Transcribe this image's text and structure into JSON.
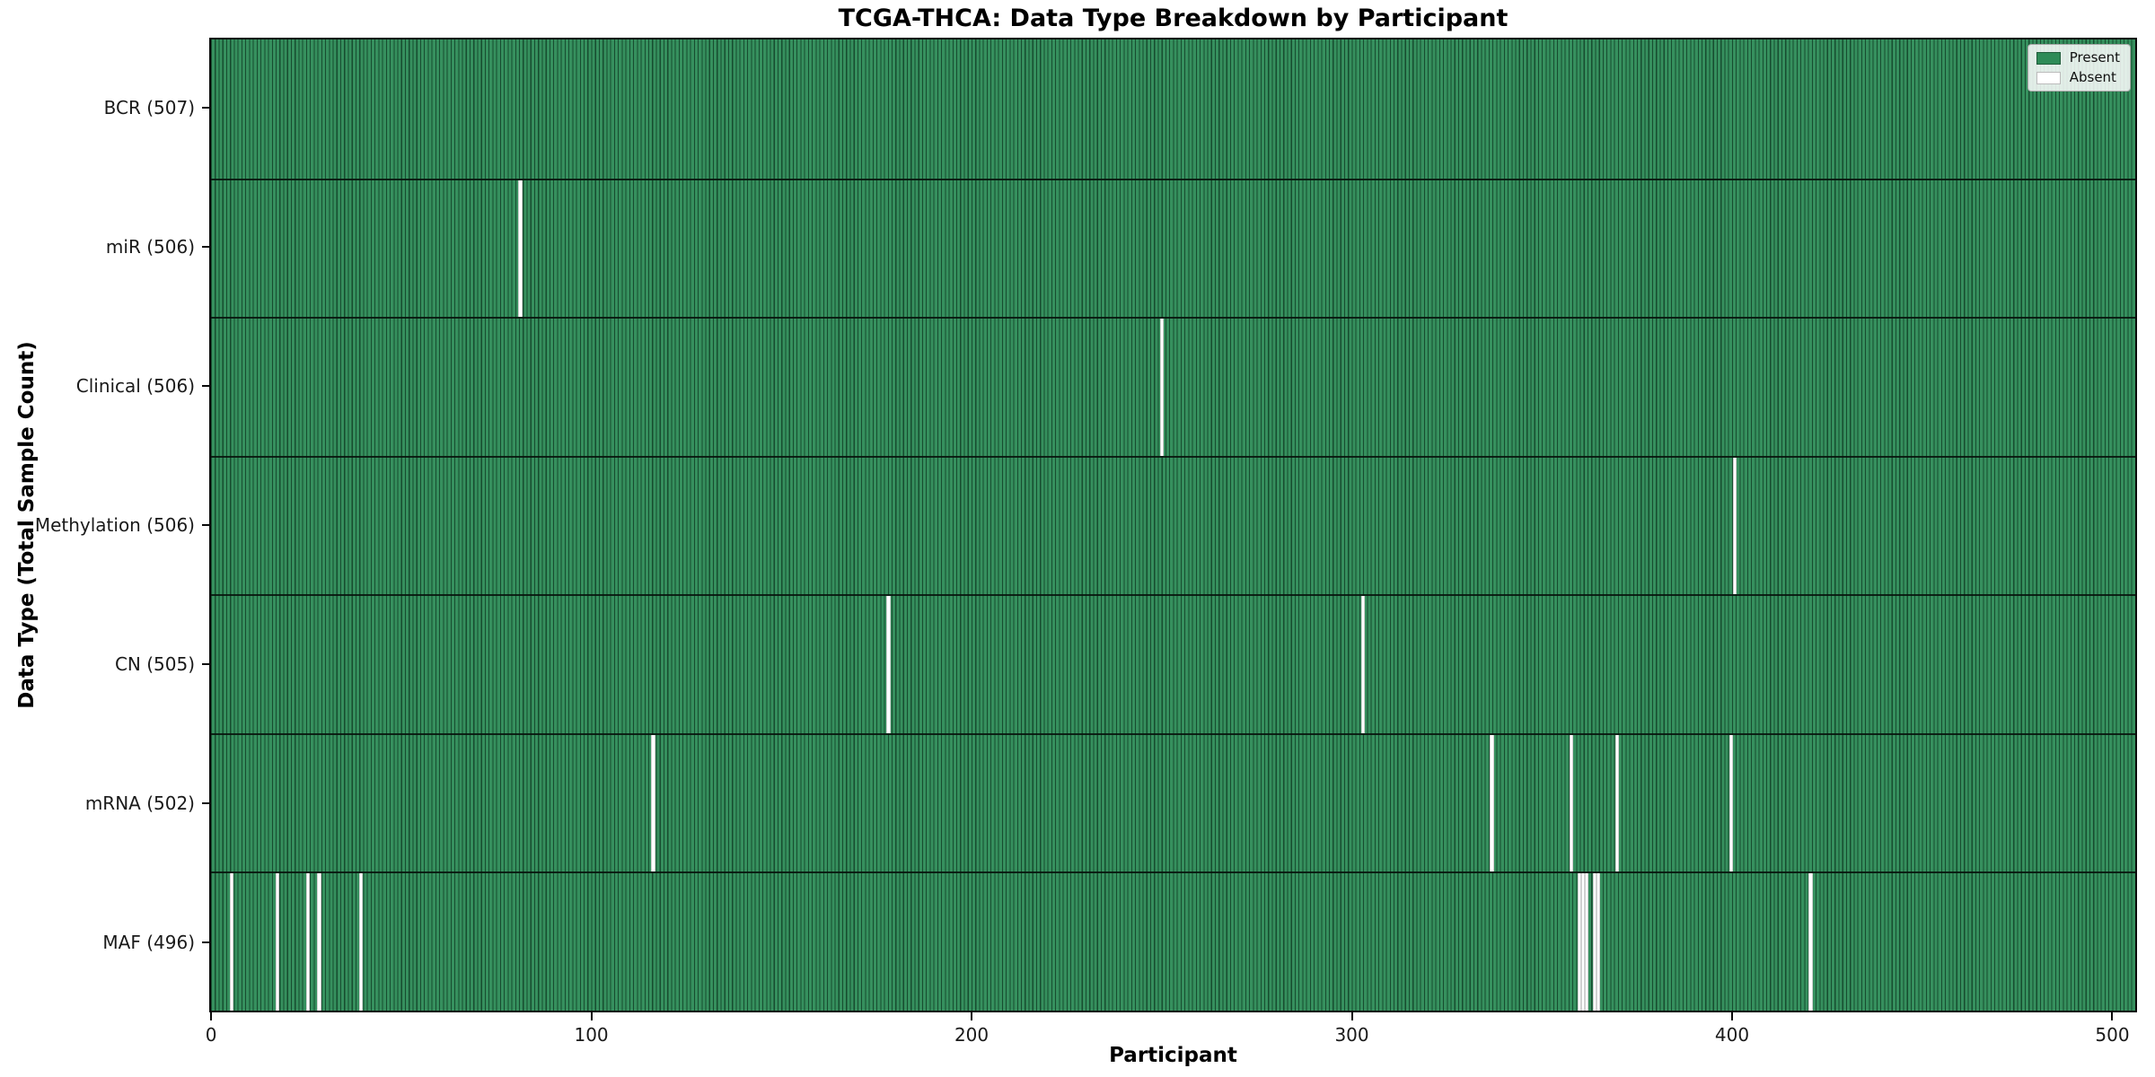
{
  "figure": {
    "title": "TCGA-THCA: Data Type Breakdown by Participant",
    "xlabel": "Participant",
    "ylabel": "Data Type (Total Sample Count)",
    "legend": {
      "present_label": "Present",
      "absent_label": "Absent"
    },
    "colors": {
      "present": "#2e8b57",
      "absent": "#ffffff",
      "bar_edge": "rgba(0,14,8,0.5)",
      "plot_border": "#0a0a0a",
      "legend_border": "#a8a8a8"
    }
  },
  "chart_data": {
    "type": "heatmap",
    "title": "TCGA-THCA: Data Type Breakdown by Participant",
    "xlabel": "Participant",
    "ylabel": "Data Type (Total Sample Count)",
    "legend": [
      "Present",
      "Absent"
    ],
    "legend_position": "upper right",
    "grid": false,
    "n_participants": 507,
    "xlim": [
      -0.5,
      506.5
    ],
    "x_ticks": [
      0,
      100,
      200,
      300,
      400,
      500
    ],
    "x_tick_labels": [
      "0",
      "100",
      "200",
      "300",
      "400",
      "500"
    ],
    "rows": [
      {
        "label": "BCR (507)",
        "name": "BCR",
        "present_count": 507,
        "absent_count": 0,
        "absent_indices": []
      },
      {
        "label": "miR (506)",
        "name": "miR",
        "present_count": 506,
        "absent_count": 1,
        "absent_indices": [
          81
        ]
      },
      {
        "label": "Clinical (506)",
        "name": "Clinical",
        "present_count": 506,
        "absent_count": 1,
        "absent_indices": [
          250
        ]
      },
      {
        "label": "Methylation (506)",
        "name": "Methylation",
        "present_count": 506,
        "absent_count": 1,
        "absent_indices": [
          401
        ]
      },
      {
        "label": "CN (505)",
        "name": "CN",
        "present_count": 505,
        "absent_count": 2,
        "absent_indices": [
          178,
          303
        ]
      },
      {
        "label": "mRNA (502)",
        "name": "mRNA",
        "present_count": 502,
        "absent_count": 5,
        "absent_indices": [
          116,
          337,
          358,
          370,
          400
        ]
      },
      {
        "label": "MAF (496)",
        "name": "MAF",
        "present_count": 496,
        "absent_count": 11,
        "absent_indices": [
          5,
          17,
          25,
          28,
          39,
          360,
          361,
          362,
          364,
          365,
          421
        ]
      }
    ]
  }
}
